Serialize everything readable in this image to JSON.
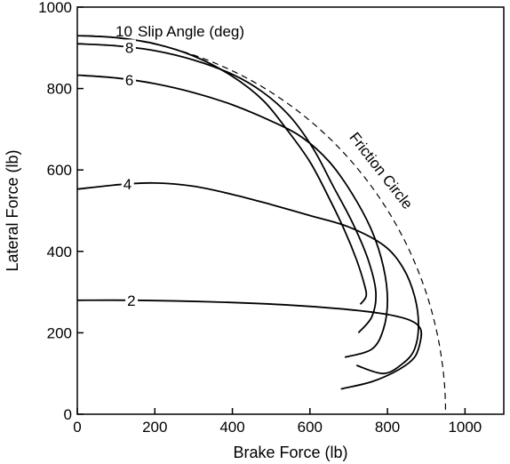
{
  "chart_data": {
    "type": "line",
    "title": "",
    "xlabel": "Brake Force (lb)",
    "ylabel": "Lateral Force (lb)",
    "xlim": [
      0,
      1100
    ],
    "ylim": [
      0,
      1000
    ],
    "x_ticks": [
      0,
      200,
      400,
      600,
      800,
      1000
    ],
    "y_ticks": [
      0,
      200,
      400,
      600,
      800,
      1000
    ],
    "grid": false,
    "series": [
      {
        "name": "2",
        "points": [
          [
            0,
            280
          ],
          [
            150,
            280
          ],
          [
            350,
            276
          ],
          [
            550,
            268
          ],
          [
            700,
            257
          ],
          [
            800,
            245
          ],
          [
            860,
            230
          ],
          [
            885,
            210
          ],
          [
            885,
            180
          ],
          [
            870,
            140
          ],
          [
            830,
            110
          ],
          [
            760,
            80
          ],
          [
            680,
            62
          ]
        ]
      },
      {
        "name": "4",
        "points": [
          [
            0,
            553
          ],
          [
            120,
            565
          ],
          [
            200,
            568
          ],
          [
            300,
            560
          ],
          [
            400,
            540
          ],
          [
            500,
            515
          ],
          [
            600,
            488
          ],
          [
            700,
            460
          ],
          [
            790,
            415
          ],
          [
            840,
            360
          ],
          [
            870,
            290
          ],
          [
            880,
            220
          ],
          [
            870,
            160
          ],
          [
            840,
            125
          ],
          [
            790,
            100
          ],
          [
            720,
            120
          ]
        ]
      },
      {
        "name": "6",
        "points": [
          [
            0,
            833
          ],
          [
            100,
            826
          ],
          [
            200,
            812
          ],
          [
            300,
            790
          ],
          [
            400,
            760
          ],
          [
            500,
            720
          ],
          [
            580,
            680
          ],
          [
            650,
            620
          ],
          [
            710,
            540
          ],
          [
            760,
            450
          ],
          [
            790,
            360
          ],
          [
            800,
            280
          ],
          [
            790,
            210
          ],
          [
            760,
            160
          ],
          [
            690,
            140
          ]
        ]
      },
      {
        "name": "8",
        "points": [
          [
            0,
            910
          ],
          [
            100,
            905
          ],
          [
            200,
            893
          ],
          [
            300,
            870
          ],
          [
            400,
            835
          ],
          [
            480,
            790
          ],
          [
            550,
            730
          ],
          [
            610,
            650
          ],
          [
            660,
            560
          ],
          [
            710,
            470
          ],
          [
            750,
            380
          ],
          [
            770,
            300
          ],
          [
            760,
            240
          ],
          [
            725,
            200
          ]
        ]
      },
      {
        "name": "10",
        "points": [
          [
            0,
            930
          ],
          [
            100,
            925
          ],
          [
            200,
            910
          ],
          [
            300,
            880
          ],
          [
            400,
            830
          ],
          [
            480,
            770
          ],
          [
            540,
            700
          ],
          [
            600,
            620
          ],
          [
            650,
            530
          ],
          [
            690,
            450
          ],
          [
            720,
            380
          ],
          [
            740,
            320
          ],
          [
            745,
            290
          ],
          [
            730,
            270
          ]
        ]
      }
    ],
    "reference_curves": [
      {
        "name": "Friction Circle",
        "style": "dashed",
        "radius_x": 950,
        "radius_y": 930
      }
    ],
    "annotations": {
      "slip_angle_label": "Slip Angle (deg)"
    }
  }
}
